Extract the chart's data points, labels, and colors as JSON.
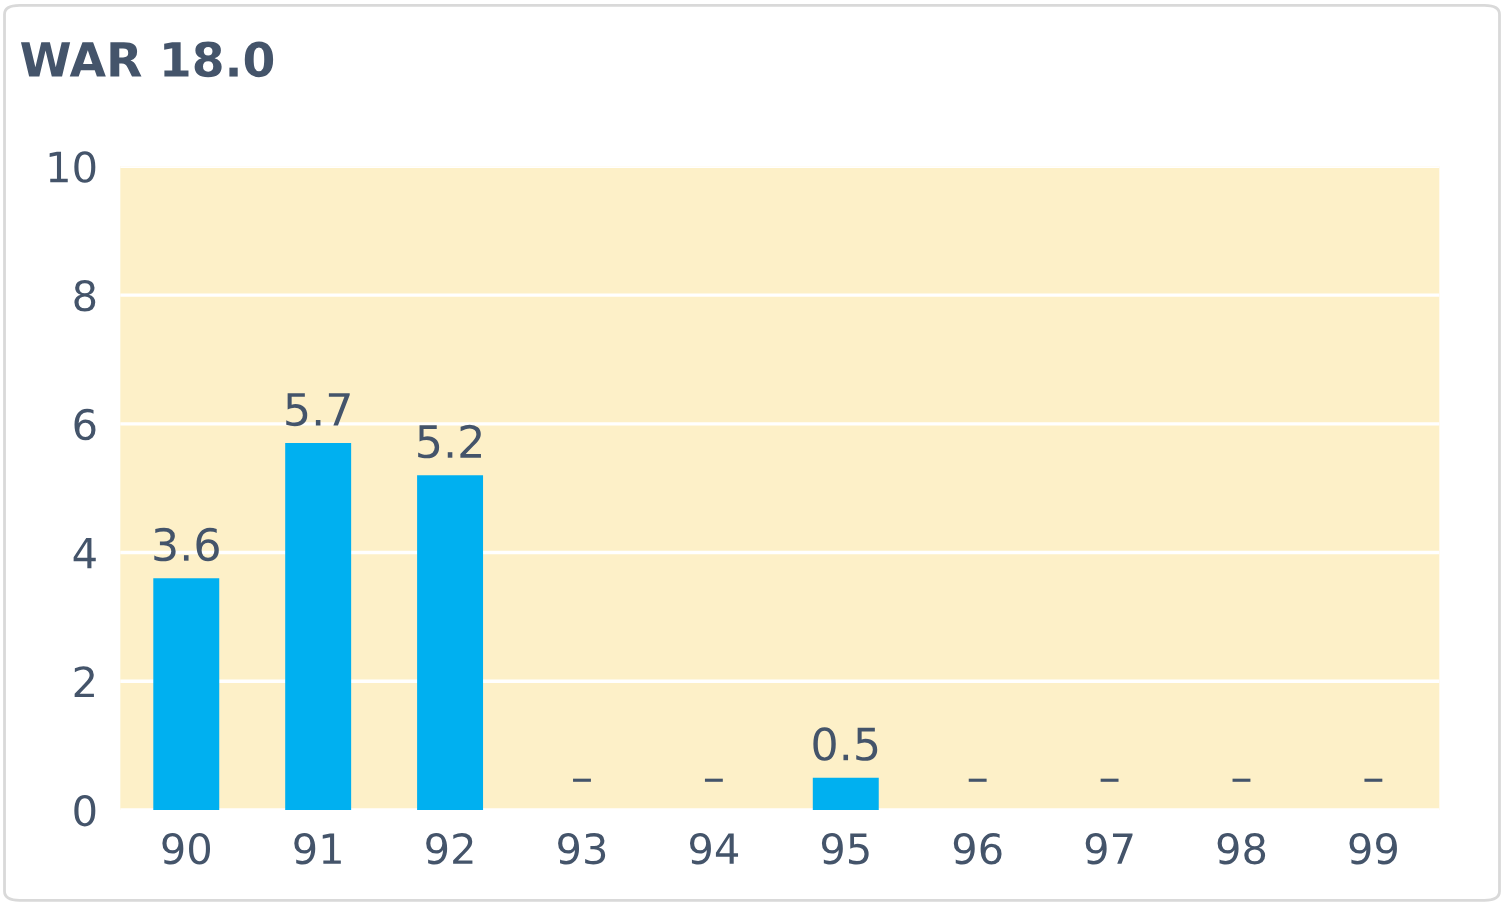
{
  "chart_data": {
    "type": "bar",
    "title": "WAR 18.0",
    "categories": [
      "90",
      "91",
      "92",
      "93",
      "94",
      "95",
      "96",
      "97",
      "98",
      "99"
    ],
    "values": [
      3.6,
      5.7,
      5.2,
      null,
      null,
      0.5,
      null,
      null,
      null,
      null
    ],
    "value_labels": [
      "3.6",
      "5.7",
      "5.2",
      "–",
      "–",
      "0.5",
      "–",
      "–",
      "–",
      "–"
    ],
    "color": "#00b0f0",
    "ylim": [
      0,
      10
    ],
    "yticks": [
      0,
      2,
      4,
      6,
      8,
      10
    ],
    "grid": "y",
    "legend": false
  }
}
